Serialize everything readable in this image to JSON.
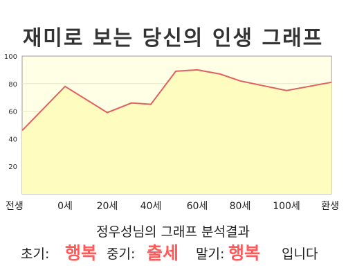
{
  "chart_data": {
    "type": "area",
    "title": "재미로 보는 당신의 인생 그래프",
    "x_tick_labels": [
      "전생",
      "0세",
      "20세",
      "40세",
      "60세",
      "80세",
      "100세",
      "환생"
    ],
    "y_ticks": [
      20,
      40,
      60,
      80,
      100
    ],
    "ylim": [
      0,
      100
    ],
    "grid": true,
    "points": [
      {
        "x": "전생",
        "y": 46
      },
      {
        "x": "0세",
        "y": 78
      },
      {
        "x": "20세",
        "y": 59
      },
      {
        "x": "30세",
        "y": 66
      },
      {
        "x": "40세",
        "y": 65
      },
      {
        "x": "50세",
        "y": 89
      },
      {
        "x": "60세",
        "y": 90
      },
      {
        "x": "70세",
        "y": 87
      },
      {
        "x": "80세",
        "y": 82
      },
      {
        "x": "100세",
        "y": 75
      },
      {
        "x": "환생",
        "y": 81
      }
    ],
    "colors": {
      "line": "#e06060",
      "fill": "#fffcc0",
      "plot_bg": "#ffffe6",
      "grid": "#e6e6c8"
    }
  },
  "result": {
    "title": "정우성님의 그래프 분석결과",
    "early_label": "초기:",
    "early_value": "행복",
    "middle_label": "중기:",
    "middle_value": "출세",
    "late_label": "말기:",
    "late_value": "행복",
    "suffix": "입니다"
  }
}
